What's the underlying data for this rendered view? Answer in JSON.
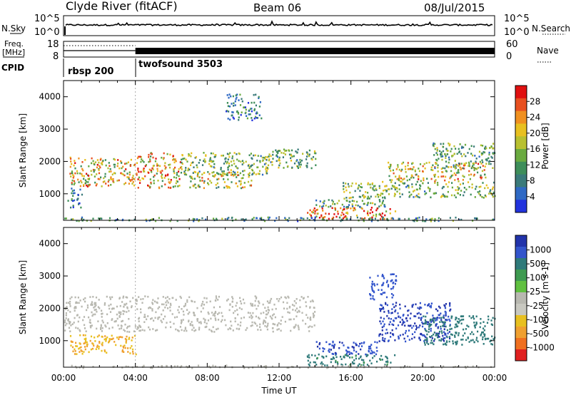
{
  "header": {
    "station": "Clyde River (fitACF)",
    "beam": "Beam 06",
    "date": "08/Jul/2015"
  },
  "labels": {
    "nsky": "N.Sky",
    "nsearch": "N.Search",
    "freq_line1": "Freq.",
    "freq_line2": "[MHz]",
    "nave": "Nave",
    "cpid": "CPID"
  },
  "noise_axis": {
    "left_ticks": [
      "10^5",
      "10^0"
    ],
    "right_ticks": [
      "10^5",
      "10^0"
    ]
  },
  "freq_axis": {
    "left_ticks": [
      18,
      8
    ],
    "right_ticks": [
      60,
      0
    ]
  },
  "cpid": [
    {
      "name": "rbsp",
      "id": "200",
      "start_hour": 0
    },
    {
      "name": "twofsound",
      "id": "3503",
      "start_hour": 4
    }
  ],
  "chart_data": [
    {
      "type": "heatmap",
      "title": "",
      "xlabel": "",
      "ylabel": "Slant Range [km]",
      "xlim": [
        0,
        24
      ],
      "ylim": [
        180,
        4500
      ],
      "yticks": [
        1000,
        2000,
        3000,
        4000
      ],
      "colorbar": {
        "label": "Power [dB]",
        "ticks": [
          4,
          8,
          12,
          16,
          20,
          24,
          28
        ],
        "range": [
          0,
          32
        ],
        "colors": [
          "#2233dd",
          "#2f69c4",
          "#3a7a7a",
          "#3e8e5a",
          "#6aaa40",
          "#b8c030",
          "#e8c020",
          "#f09020",
          "#e85020",
          "#e01010"
        ]
      },
      "regions": [
        {
          "t": [
            0.3,
            4.0
          ],
          "r": [
            1250,
            2150
          ],
          "value": 20
        },
        {
          "t": [
            0.2,
            1.0
          ],
          "r": [
            600,
            1200
          ],
          "value": 8
        },
        {
          "t": [
            4.0,
            6.5
          ],
          "r": [
            1200,
            2300
          ],
          "value": 22
        },
        {
          "t": [
            6.5,
            11.5
          ],
          "r": [
            1600,
            2300
          ],
          "value": 14
        },
        {
          "t": [
            11.5,
            14.0
          ],
          "r": [
            1800,
            2400
          ],
          "value": 13
        },
        {
          "t": [
            7.0,
            10.5
          ],
          "r": [
            1200,
            1700
          ],
          "value": 18
        },
        {
          "t": [
            9.0,
            11.0
          ],
          "r": [
            3300,
            4100
          ],
          "value": 8
        },
        {
          "t": [
            13.5,
            18.5
          ],
          "r": [
            250,
            600
          ],
          "value": 26
        },
        {
          "t": [
            14.0,
            18.0
          ],
          "r": [
            600,
            900
          ],
          "value": 12
        },
        {
          "t": [
            15.5,
            24.0
          ],
          "r": [
            900,
            1400
          ],
          "value": 14
        },
        {
          "t": [
            18.0,
            23.5
          ],
          "r": [
            1400,
            2000
          ],
          "value": 20
        },
        {
          "t": [
            20.5,
            24.0
          ],
          "r": [
            1800,
            2600
          ],
          "value": 12
        },
        {
          "t": [
            0.0,
            24.0
          ],
          "r": [
            180,
            300
          ],
          "value": 10
        }
      ]
    },
    {
      "type": "heatmap",
      "title": "",
      "xlabel": "Time UT",
      "ylabel": "Slant Range [km]",
      "xlim": [
        0,
        24
      ],
      "ylim": [
        180,
        4500
      ],
      "yticks": [
        1000,
        2000,
        3000,
        4000
      ],
      "xticks": [
        "00:00",
        "04:00",
        "08:00",
        "12:00",
        "16:00",
        "20:00",
        "00:00"
      ],
      "colorbar": {
        "label": "Velocity [m s-1]",
        "ticks": [
          1000,
          500,
          100,
          25,
          -25,
          -100,
          -500,
          -1000
        ],
        "colors": [
          "#2233aa",
          "#3355cc",
          "#2f7a7a",
          "#3e9a50",
          "#60c040",
          "#b8b8b0",
          "#c8c8c0",
          "#e8c020",
          "#f0a030",
          "#f07020",
          "#e02020"
        ]
      },
      "regions": [
        {
          "t": [
            0.0,
            14.0
          ],
          "r": [
            1300,
            2400
          ],
          "value": 0
        },
        {
          "t": [
            0.3,
            4.0
          ],
          "r": [
            600,
            1200
          ],
          "value": -150
        },
        {
          "t": [
            13.5,
            18.5
          ],
          "r": [
            250,
            600
          ],
          "value": 200
        },
        {
          "t": [
            14.0,
            17.5
          ],
          "r": [
            600,
            1000
          ],
          "value": 700
        },
        {
          "t": [
            17.5,
            21.5
          ],
          "r": [
            1000,
            2200
          ],
          "value": 800
        },
        {
          "t": [
            20.0,
            24.0
          ],
          "r": [
            900,
            1800
          ],
          "value": 300
        },
        {
          "t": [
            17.0,
            18.5
          ],
          "r": [
            2300,
            3100
          ],
          "value": 600
        },
        {
          "t": [
            0.0,
            24.0
          ],
          "r": [
            180,
            260
          ],
          "value": 0
        }
      ]
    }
  ]
}
